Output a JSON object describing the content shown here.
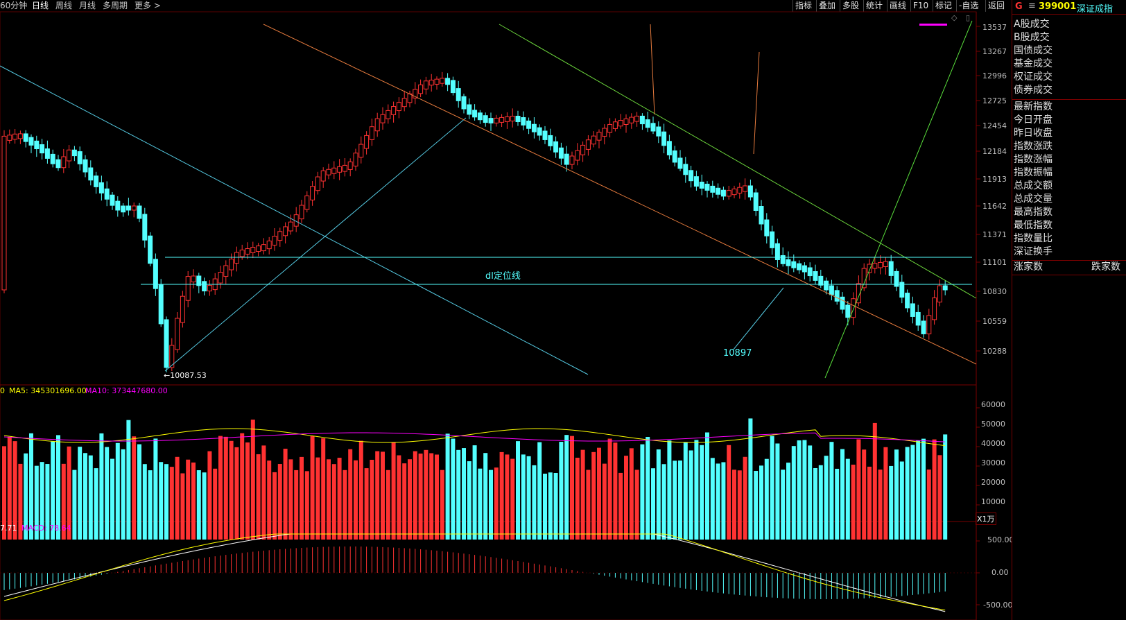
{
  "periods": [
    "60分钟",
    "日线",
    "周线",
    "月线",
    "多周期",
    "更多 >"
  ],
  "active_period": "日线",
  "toolbar": [
    "指标",
    "叠加",
    "多股",
    "统计",
    "画线",
    "F10",
    "标记",
    "-自选",
    "返回"
  ],
  "corner_icons": [
    "◇",
    "▯"
  ],
  "price_axis": [
    "13537",
    "13267",
    "12996",
    "12725",
    "12454",
    "12184",
    "11913",
    "11642",
    "11371",
    "11101",
    "10830",
    "10559",
    "10288"
  ],
  "annotations": {
    "low_label": "←10087.53",
    "dl_line_label": "dl定位线",
    "arrow_label": "10897"
  },
  "volume": {
    "ma_prefix": "0",
    "ma5": "MA5: 345301696.00",
    "ma10": "MA10: 373447680.00",
    "axis": [
      "60000",
      "50000",
      "40000",
      "30000",
      "20000",
      "10000"
    ],
    "unit": "X1万"
  },
  "macd": {
    "prefix": "7.71",
    "macd": "MACD: 78.64",
    "axis": [
      "500.00",
      "0.00",
      "-500.00"
    ]
  },
  "panel": {
    "badge": "G",
    "menu_icon": "≡",
    "code": "399001",
    "name": "深证成指",
    "group1": [
      "A股成交",
      "B股成交",
      "国债成交",
      "基金成交",
      "权证成交",
      "债券成交"
    ],
    "group2": [
      "最新指数",
      "今日开盘",
      "昨日收盘",
      "指数涨跌",
      "指数涨幅",
      "指数振幅",
      "总成交额",
      "总成交量",
      "最高指数",
      "最低指数",
      "指数量比",
      "深证换手"
    ],
    "up_label": "涨家数",
    "down_label": "跌家数"
  },
  "colors": {
    "up": "#ff3232",
    "down": "#54ffff",
    "ma5": "#ffff00",
    "ma10": "#ff00ff",
    "frame": "#7a0000"
  }
}
